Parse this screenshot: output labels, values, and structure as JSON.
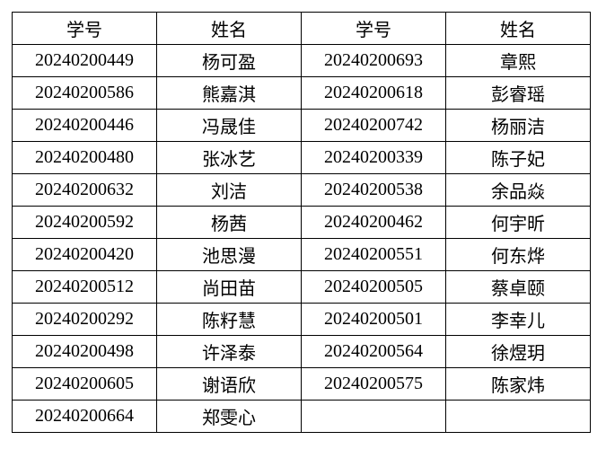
{
  "headers": [
    "学号",
    "姓名",
    "学号",
    "姓名"
  ],
  "rows": [
    [
      "20240200449",
      "杨可盈",
      "20240200693",
      "章熙"
    ],
    [
      "20240200586",
      "熊嘉淇",
      "20240200618",
      "彭睿瑶"
    ],
    [
      "20240200446",
      "冯晟佳",
      "20240200742",
      "杨丽洁"
    ],
    [
      "20240200480",
      "张冰艺",
      "20240200339",
      "陈子妃"
    ],
    [
      "20240200632",
      "刘洁",
      "20240200538",
      "余品焱"
    ],
    [
      "20240200592",
      "杨茜",
      "20240200462",
      "何宇昕"
    ],
    [
      "20240200420",
      "池思漫",
      "20240200551",
      "何东烨"
    ],
    [
      "20240200512",
      "尚田苗",
      "20240200505",
      "蔡卓颐"
    ],
    [
      "20240200292",
      "陈籽慧",
      "20240200501",
      "李幸儿"
    ],
    [
      "20240200498",
      "许泽泰",
      "20240200564",
      "徐煜玥"
    ],
    [
      "20240200605",
      "谢语欣",
      "20240200575",
      "陈家炜"
    ],
    [
      "20240200664",
      "郑雯心",
      "",
      ""
    ]
  ]
}
